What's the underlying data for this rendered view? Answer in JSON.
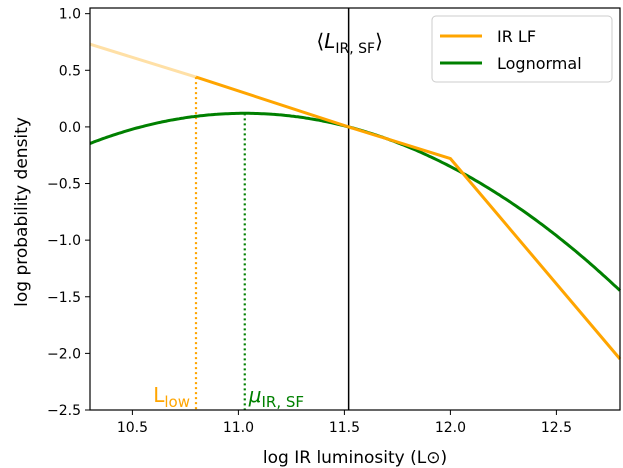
{
  "chart_data": {
    "type": "line",
    "title": "",
    "xlabel": "log IR luminosity (L⊙)",
    "ylabel": "log probability density",
    "xlim": [
      10.3,
      12.8
    ],
    "ylim": [
      -2.5,
      1.05
    ],
    "xticks": [
      10.5,
      11.0,
      11.5,
      12.0,
      12.5
    ],
    "yticks": [
      -2.5,
      -2.0,
      -1.5,
      -1.0,
      -0.5,
      0.0,
      0.5,
      1.0
    ],
    "xtick_labels": [
      "10.5",
      "11.0",
      "11.5",
      "12.0",
      "12.5"
    ],
    "ytick_labels": [
      "−2.5",
      "−2.0",
      "−1.5",
      "−1.0",
      "−0.5",
      "0.0",
      "0.5",
      "1.0"
    ],
    "grid": false,
    "legend_position": "top-right",
    "series": [
      {
        "name": "IR LF",
        "color": "#ffa500",
        "x": [
          10.3,
          10.8,
          11.52,
          12.0,
          12.8
        ],
        "y": [
          0.73,
          0.44,
          0.0,
          -0.28,
          -2.05
        ]
      },
      {
        "name": "Lognormal",
        "color": "#008000",
        "center": 11.03,
        "peak": 0.12,
        "x": [
          10.3,
          10.5,
          10.7,
          10.9,
          11.03,
          11.2,
          11.4,
          11.52,
          11.7,
          11.9,
          12.1,
          12.3,
          12.5,
          12.7,
          12.8
        ],
        "y": [
          -0.16,
          -0.03,
          0.06,
          0.11,
          0.12,
          0.1,
          0.05,
          0.0,
          -0.1,
          -0.25,
          -0.47,
          -0.72,
          -1.03,
          -1.33,
          -1.49
        ]
      }
    ],
    "annotations": [
      {
        "id": "lum_sf",
        "prefix": "⟨",
        "main": "L",
        "sub": "IR, SF",
        "suffix": "⟩",
        "x": 11.52,
        "color": "#000000"
      },
      {
        "id": "l_low",
        "main": "L",
        "sub": "low",
        "x": 10.8,
        "y_top": 0.44,
        "color": "#ffa500"
      },
      {
        "id": "mu_sf",
        "main": "μ",
        "sub": "IR, SF",
        "x": 11.03,
        "y_top": 0.12,
        "color": "#008000"
      }
    ]
  }
}
